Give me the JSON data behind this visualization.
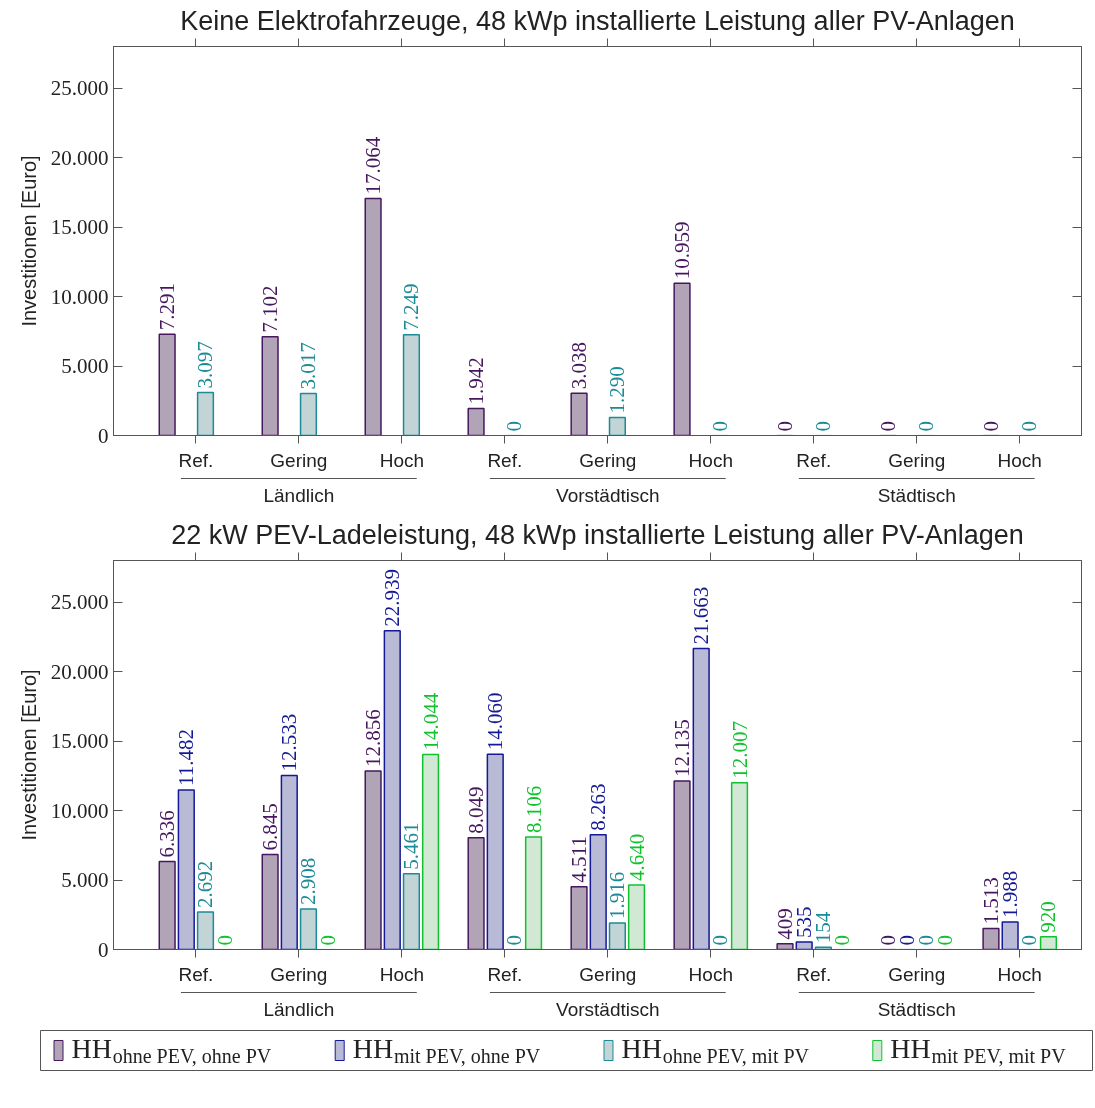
{
  "chart_data": [
    {
      "type": "bar",
      "title": "Keine Elektrofahrzeuge, 48 kWp installierte Leistung aller PV-Anlagen",
      "ylabel": "Investitionen [Euro]",
      "categories": [
        "Ref.",
        "Gering",
        "Hoch",
        "Ref.",
        "Gering",
        "Hoch",
        "Ref.",
        "Gering",
        "Hoch"
      ],
      "annotations": [
        "Ländlich",
        "Vorstädtisch",
        "Städtisch"
      ],
      "series": [
        {
          "color": "#b0a4b6",
          "values": [
            7291,
            7102,
            17064,
            1942,
            3038,
            10959,
            0,
            0,
            0
          ],
          "value_labels": [
            "7.291",
            "7.102",
            "17.064",
            "1.942",
            "3.038",
            "10.959",
            "0",
            "0",
            "0"
          ]
        },
        {
          "color": "#b9bad6",
          "values": [
            null,
            null,
            null,
            null,
            null,
            null,
            null,
            null,
            null
          ]
        },
        {
          "color": "#c2d4d6",
          "values": [
            3097,
            3017,
            7249,
            0,
            1290,
            0,
            0,
            0,
            0
          ],
          "value_labels": [
            "3.097",
            "3.017",
            "7.249",
            "0",
            "1.290",
            "0",
            "0",
            "0",
            "0"
          ]
        },
        {
          "color": "#d0e8d4",
          "values": [
            null,
            null,
            null,
            null,
            null,
            null,
            null,
            null,
            null
          ]
        }
      ],
      "ylim": [
        0,
        28000
      ],
      "yticks": [
        0,
        {
          "value": 5000,
          "label": "5.000"
        },
        {
          "value": 10000,
          "label": "10.000"
        },
        {
          "value": 15000,
          "label": "15.000"
        },
        {
          "value": 20000,
          "label": "20.000"
        },
        {
          "value": 25000,
          "label": "25.000"
        }
      ]
    },
    {
      "type": "bar",
      "title": "22 kW PEV-Ladeleistung, 48 kWp installierte Leistung aller PV-Anlagen",
      "ylabel": "Investitionen [Euro]",
      "categories": [
        "Ref.",
        "Gering",
        "Hoch",
        "Ref.",
        "Gering",
        "Hoch",
        "Ref.",
        "Gering",
        "Hoch"
      ],
      "annotations": [
        "Ländlich",
        "Vorstädtisch",
        "Städtisch"
      ],
      "series": [
        {
          "name": "HH$_{ohne PEV, ohne PV}$",
          "color": "#b0a4b6",
          "values": [
            6336,
            6845,
            12856,
            8049,
            4511,
            12135,
            409,
            0,
            1513
          ],
          "value_labels": [
            "6.336",
            "6.845",
            "12.856",
            "8.049",
            "4.511",
            "12.135",
            "409",
            "0",
            "1.513"
          ]
        },
        {
          "name": "HH$_{mit PEV, ohne PV}$",
          "color": "#b9bad6",
          "values": [
            11482,
            12533,
            22939,
            14060,
            8263,
            21663,
            535,
            0,
            1988
          ],
          "value_labels": [
            "11.482",
            "12.533",
            "22.939",
            "14.060",
            "8.263",
            "21.663",
            "535",
            "0",
            "1.988"
          ]
        },
        {
          "name": "HH$_{ohne PEV, mit PV}$",
          "color": "#c2d4d6",
          "values": [
            2692,
            2908,
            5461,
            0,
            1916,
            0,
            154,
            0,
            0
          ],
          "value_labels": [
            "2.692",
            "2.908",
            "5.461",
            "0",
            "1.916",
            "0",
            "154",
            "0",
            "0"
          ]
        },
        {
          "name": "HH$_{mit PEV, mit PV}$",
          "color": "#d0e8d4",
          "values": [
            0,
            0,
            14044,
            8106,
            4640,
            12007,
            0,
            0,
            920
          ],
          "value_labels": [
            "0",
            "0",
            "14.044",
            "8.106",
            "4.640",
            "12.007",
            "0",
            "0",
            "920"
          ]
        }
      ],
      "ylim": [
        0,
        28000
      ],
      "yticks": [
        0,
        {
          "value": 5000,
          "label": "5.000"
        },
        {
          "value": 10000,
          "label": "10.000"
        },
        {
          "value": 15000,
          "label": "15.000"
        },
        {
          "value": 20000,
          "label": "20.000"
        },
        {
          "value": 25000,
          "label": "25.000"
        }
      ],
      "legend": "bottom"
    }
  ]
}
